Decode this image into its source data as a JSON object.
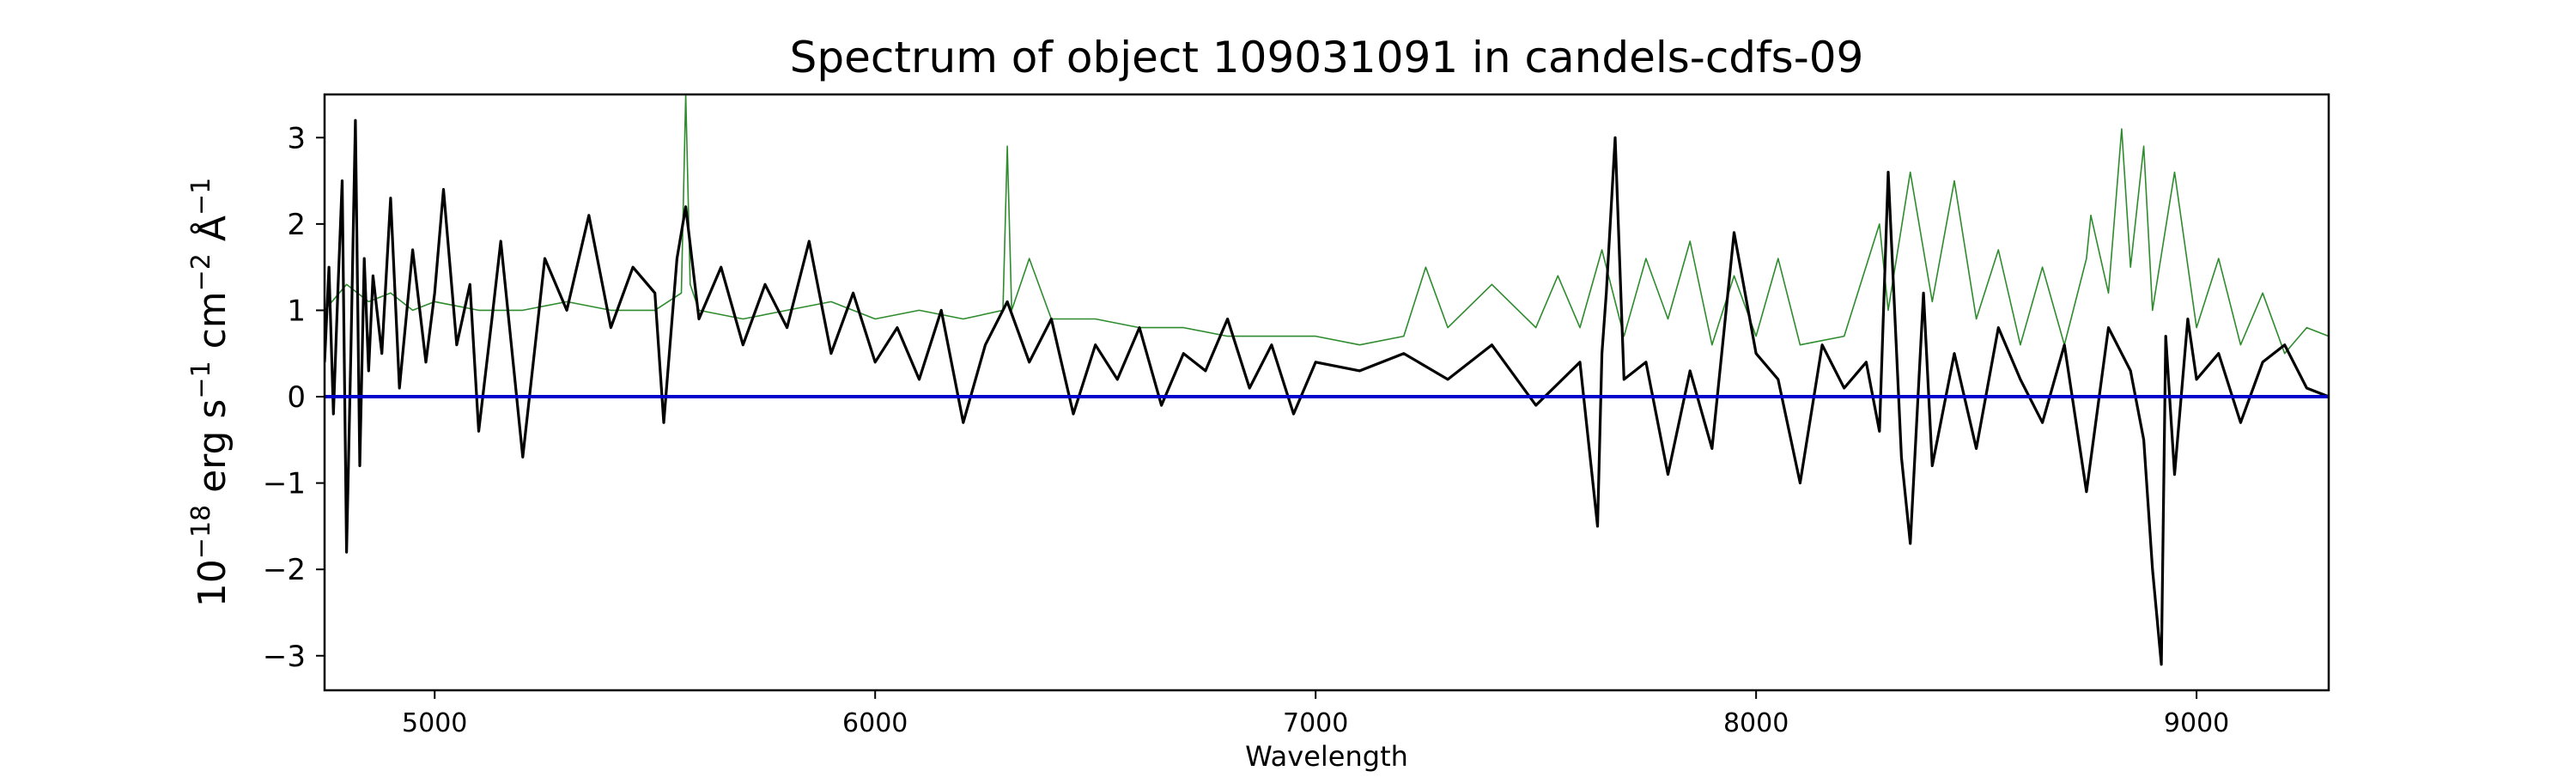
{
  "chart_data": {
    "type": "line",
    "title": "Spectrum of object 109031091 in candels-cdfs-09",
    "xlabel": "Wavelength",
    "ylabel_parts": [
      "10",
      "−18",
      " erg s",
      "−1",
      " cm",
      "−2",
      " Å",
      "−1"
    ],
    "xlim": [
      4750,
      9300
    ],
    "ylim": [
      -3.4,
      3.5
    ],
    "x_ticks": [
      5000,
      6000,
      7000,
      8000,
      9000
    ],
    "x_tick_labels": [
      "5000",
      "6000",
      "7000",
      "8000",
      "9000"
    ],
    "y_ticks": [
      -3,
      -2,
      -1,
      0,
      1,
      2,
      3
    ],
    "y_tick_labels": [
      "−3",
      "−2",
      "−1",
      "0",
      "1",
      "2",
      "3"
    ],
    "grid": false,
    "colors": {
      "spectrum": "#000000",
      "model": "#2e8b2e",
      "zero_line": "#0000cc"
    },
    "series": [
      {
        "role": "spectrum",
        "x": [
          4750,
          4760,
          4770,
          4780,
          4790,
          4800,
          4810,
          4820,
          4830,
          4840,
          4850,
          4860,
          4880,
          4900,
          4920,
          4950,
          4980,
          5000,
          5020,
          5050,
          5080,
          5100,
          5130,
          5150,
          5180,
          5200,
          5250,
          5300,
          5350,
          5400,
          5450,
          5500,
          5520,
          5550,
          5570,
          5600,
          5650,
          5700,
          5750,
          5800,
          5850,
          5900,
          5950,
          6000,
          6050,
          6100,
          6150,
          6200,
          6250,
          6300,
          6350,
          6400,
          6450,
          6500,
          6550,
          6600,
          6650,
          6700,
          6750,
          6800,
          6850,
          6900,
          6950,
          7000,
          7100,
          7200,
          7300,
          7400,
          7500,
          7600,
          7640,
          7650,
          7660,
          7680,
          7700,
          7750,
          7800,
          7850,
          7900,
          7950,
          8000,
          8050,
          8100,
          8150,
          8200,
          8250,
          8280,
          8300,
          8330,
          8350,
          8380,
          8400,
          8450,
          8500,
          8550,
          8600,
          8650,
          8700,
          8750,
          8800,
          8850,
          8880,
          8900,
          8920,
          8930,
          8950,
          8980,
          9000,
          9050,
          9100,
          9150,
          9200,
          9250,
          9300
        ],
        "y": [
          0.4,
          1.5,
          -0.2,
          1.2,
          2.5,
          -1.8,
          0.6,
          3.2,
          -0.8,
          1.6,
          0.3,
          1.4,
          0.5,
          2.3,
          0.1,
          1.7,
          0.4,
          1.2,
          2.4,
          0.6,
          1.3,
          -0.4,
          0.9,
          1.8,
          0.3,
          -0.7,
          1.6,
          1.0,
          2.1,
          0.8,
          1.5,
          1.2,
          -0.3,
          1.6,
          2.2,
          0.9,
          1.5,
          0.6,
          1.3,
          0.8,
          1.8,
          0.5,
          1.2,
          0.4,
          0.8,
          0.2,
          1.0,
          -0.3,
          0.6,
          1.1,
          0.4,
          0.9,
          -0.2,
          0.6,
          0.2,
          0.8,
          -0.1,
          0.5,
          0.3,
          0.9,
          0.1,
          0.6,
          -0.2,
          0.4,
          0.3,
          0.5,
          0.2,
          0.6,
          -0.1,
          0.4,
          -1.5,
          0.5,
          1.2,
          3.0,
          0.2,
          0.4,
          -0.9,
          0.3,
          -0.6,
          1.9,
          0.5,
          0.2,
          -1.0,
          0.6,
          0.1,
          0.4,
          -0.4,
          2.6,
          -0.7,
          -1.7,
          1.2,
          -0.8,
          0.5,
          -0.6,
          0.8,
          0.2,
          -0.3,
          0.6,
          -1.1,
          0.8,
          0.3,
          -0.5,
          -2.0,
          -3.1,
          0.7,
          -0.9,
          0.9,
          0.2,
          0.5,
          -0.3,
          0.4,
          0.6,
          0.1,
          0.0
        ]
      },
      {
        "role": "model",
        "x": [
          4750,
          4800,
          4850,
          4900,
          4950,
          5000,
          5100,
          5200,
          5300,
          5400,
          5500,
          5560,
          5570,
          5580,
          5600,
          5700,
          5800,
          5900,
          6000,
          6100,
          6200,
          6290,
          6300,
          6310,
          6350,
          6400,
          6500,
          6600,
          6700,
          6800,
          6900,
          7000,
          7100,
          7200,
          7250,
          7300,
          7400,
          7500,
          7550,
          7600,
          7650,
          7700,
          7750,
          7800,
          7850,
          7900,
          7950,
          8000,
          8050,
          8100,
          8200,
          8280,
          8300,
          8350,
          8400,
          8450,
          8500,
          8550,
          8600,
          8650,
          8700,
          8750,
          8760,
          8800,
          8830,
          8850,
          8880,
          8900,
          8950,
          9000,
          9050,
          9100,
          9150,
          9200,
          9250,
          9300
        ],
        "y": [
          1.0,
          1.3,
          1.1,
          1.2,
          1.0,
          1.1,
          1.0,
          1.0,
          1.1,
          1.0,
          1.0,
          1.2,
          3.5,
          1.3,
          1.0,
          0.9,
          1.0,
          1.1,
          0.9,
          1.0,
          0.9,
          1.0,
          2.9,
          1.0,
          1.6,
          0.9,
          0.9,
          0.8,
          0.8,
          0.7,
          0.7,
          0.7,
          0.6,
          0.7,
          1.5,
          0.8,
          1.3,
          0.8,
          1.4,
          0.8,
          1.7,
          0.7,
          1.6,
          0.9,
          1.8,
          0.6,
          1.4,
          0.7,
          1.6,
          0.6,
          0.7,
          2.0,
          1.0,
          2.6,
          1.1,
          2.5,
          0.9,
          1.7,
          0.6,
          1.5,
          0.6,
          1.6,
          2.1,
          1.2,
          3.1,
          1.5,
          2.9,
          1.0,
          2.6,
          0.8,
          1.6,
          0.6,
          1.2,
          0.5,
          0.8,
          0.7
        ]
      },
      {
        "role": "zero_line",
        "x": [
          4750,
          9300
        ],
        "y": [
          0,
          0
        ]
      }
    ]
  }
}
